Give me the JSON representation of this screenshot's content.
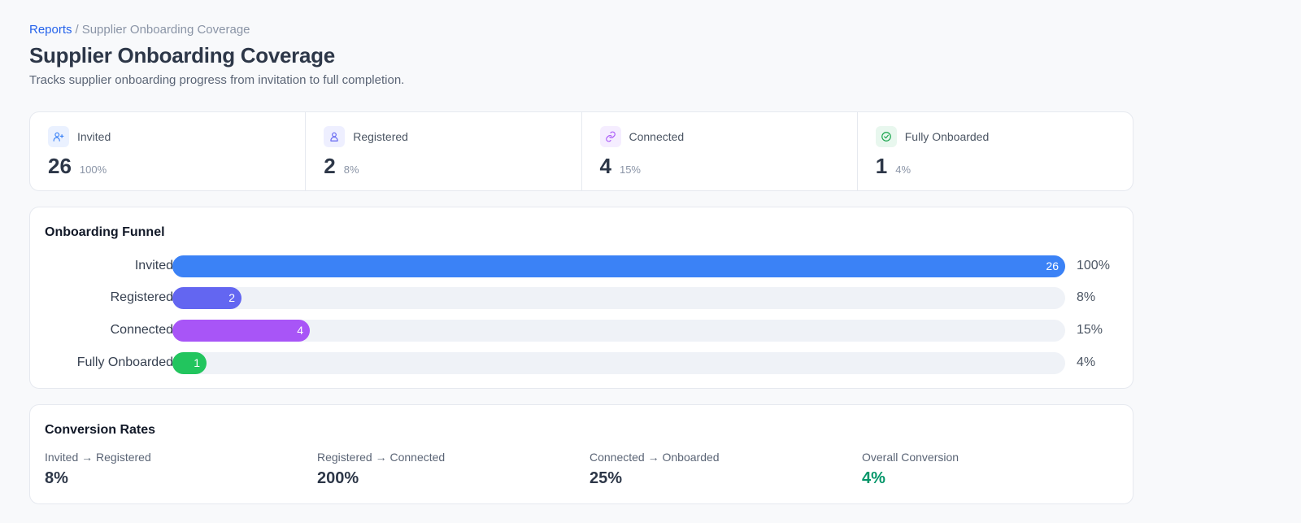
{
  "breadcrumb": {
    "root": "Reports",
    "separator": "/",
    "current": "Supplier Onboarding Coverage"
  },
  "page": {
    "title": "Supplier Onboarding Coverage",
    "subtitle": "Tracks supplier onboarding progress from invitation to full completion."
  },
  "stats": [
    {
      "label": "Invited",
      "value": "26",
      "pct": "100%",
      "icon": "user-plus-icon",
      "icon_color": "#3b82f6",
      "icon_bg": "#eaf1ff"
    },
    {
      "label": "Registered",
      "value": "2",
      "pct": "8%",
      "icon": "user-icon",
      "icon_color": "#6366f1",
      "icon_bg": "#eeefff"
    },
    {
      "label": "Connected",
      "value": "4",
      "pct": "15%",
      "icon": "link-icon",
      "icon_color": "#a855f7",
      "icon_bg": "#f5edff"
    },
    {
      "label": "Fully Onboarded",
      "value": "1",
      "pct": "4%",
      "icon": "check-circle-icon",
      "icon_color": "#16a34a",
      "icon_bg": "#e8f7ee"
    }
  ],
  "funnel": {
    "title": "Onboarding Funnel",
    "rows": [
      {
        "label": "Invited",
        "count": "26",
        "pct": "100%",
        "fraction": 1.0,
        "color": "#3b82f6"
      },
      {
        "label": "Registered",
        "count": "2",
        "pct": "8%",
        "fraction": 0.077,
        "color": "#6366f1"
      },
      {
        "label": "Connected",
        "count": "4",
        "pct": "15%",
        "fraction": 0.154,
        "color": "#a855f7"
      },
      {
        "label": "Fully Onboarded",
        "count": "1",
        "pct": "4%",
        "fraction": 0.038,
        "color": "#22c55e"
      }
    ]
  },
  "conversion": {
    "title": "Conversion Rates",
    "items": [
      {
        "label": "Invited → Registered",
        "value": "8%",
        "color": "#2d3748"
      },
      {
        "label": "Registered → Connected",
        "value": "200%",
        "color": "#2d3748"
      },
      {
        "label": "Connected → Onboarded",
        "value": "25%",
        "color": "#2d3748"
      },
      {
        "label": "Overall Conversion",
        "value": "4%",
        "color": "#059669"
      }
    ]
  }
}
